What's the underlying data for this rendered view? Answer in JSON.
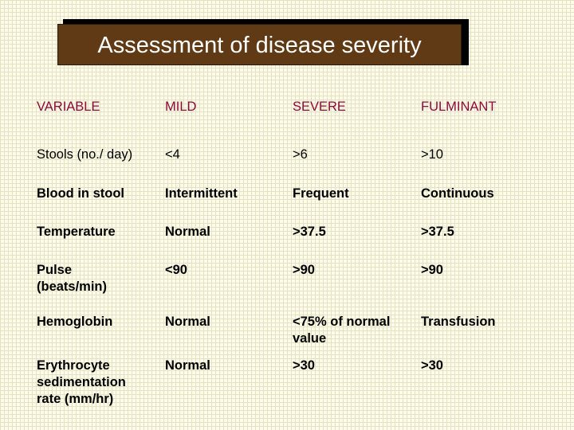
{
  "title": "Assessment of disease severity",
  "colors": {
    "title_bg": "#603a14",
    "title_text": "#ffffff",
    "header_text": "#8b0a3a",
    "body_text": "#000000"
  },
  "table": {
    "headers": [
      "VARIABLE",
      "MILD",
      "SEVERE",
      "FULMINANT"
    ],
    "rows": [
      [
        "Stools (no./ day)",
        "<4",
        ">6",
        ">10"
      ],
      [
        "Blood in stool",
        "Intermittent",
        "Frequent",
        "Continuous"
      ],
      [
        "Temperature",
        "Normal",
        ">37.5",
        ">37.5"
      ],
      [
        "Pulse (beats/min)",
        "<90",
        ">90",
        ">90"
      ],
      [
        "Hemoglobin",
        "Normal",
        "<75% of normal value",
        "Transfusion"
      ],
      [
        "Erythrocyte sedimentation rate (mm/hr)",
        "Normal",
        ">30",
        ">30"
      ]
    ]
  }
}
